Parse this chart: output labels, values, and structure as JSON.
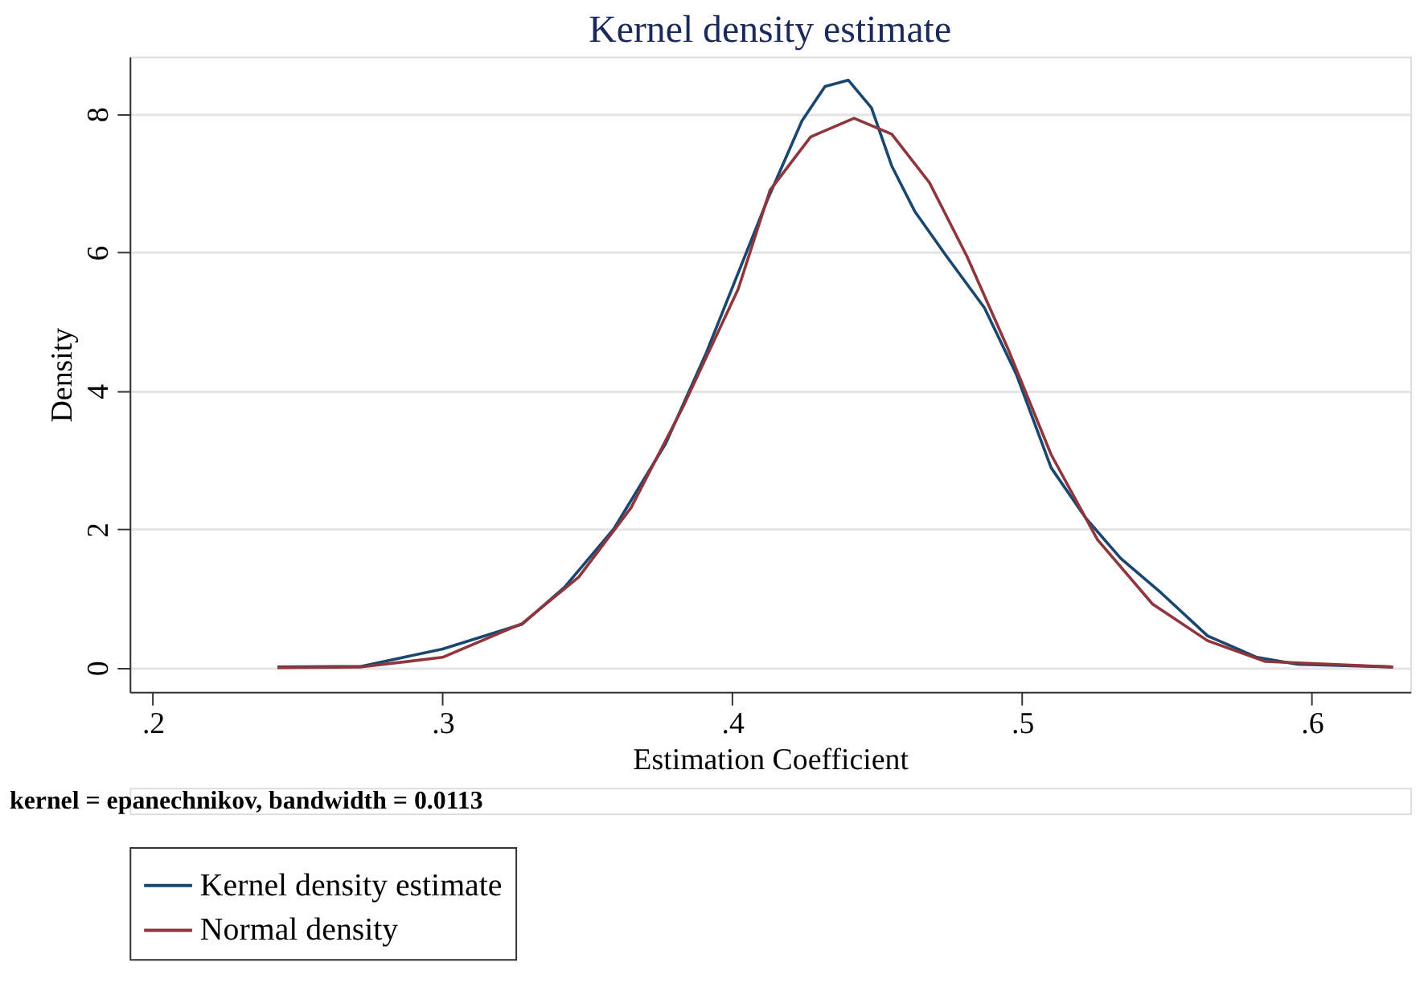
{
  "chart_data": {
    "type": "line",
    "title": "Kernel density estimate",
    "xlabel": "Estimation Coefficient",
    "ylabel": "Density",
    "xlim": [
      0.192,
      0.634
    ],
    "xticks": [
      {
        "value": 0.2,
        "label": ".2"
      },
      {
        "value": 0.3,
        "label": ".3"
      },
      {
        "value": 0.4,
        "label": ".4"
      },
      {
        "value": 0.5,
        "label": ".5"
      },
      {
        "value": 0.6,
        "label": ".6"
      }
    ],
    "ylim": [
      -0.35,
      8.83
    ],
    "yticks": [
      0,
      2,
      4,
      6,
      8
    ],
    "grid": "y",
    "legend": "bottom",
    "line_style": "solid",
    "marker": "none",
    "annotations": [
      "kernel = epanechnikov, bandwidth = 0.0113"
    ],
    "series": [
      {
        "name": "Kernel density estimate",
        "color": "#1a476f",
        "x": [
          0.243,
          0.272,
          0.3,
          0.3275,
          0.342,
          0.359,
          0.377,
          0.391,
          0.412,
          0.424,
          0.432,
          0.44,
          0.448,
          0.455,
          0.463,
          0.474,
          0.487,
          0.498,
          0.51,
          0.522,
          0.534,
          0.548,
          0.564,
          0.581,
          0.595,
          0.628
        ],
        "values": [
          0.01,
          0.02,
          0.27,
          0.63,
          1.16,
          2.0,
          3.24,
          4.55,
          6.75,
          7.9,
          8.4,
          8.49,
          8.09,
          7.25,
          6.59,
          5.94,
          5.2,
          4.24,
          2.89,
          2.16,
          1.58,
          1.08,
          0.46,
          0.15,
          0.05,
          0.01
        ]
      },
      {
        "name": "Normal density",
        "color": "#90353b",
        "x": [
          0.243,
          0.272,
          0.3,
          0.3275,
          0.347,
          0.365,
          0.383,
          0.402,
          0.413,
          0.427,
          0.442,
          0.455,
          0.468,
          0.481,
          0.495,
          0.51,
          0.526,
          0.545,
          0.564,
          0.584,
          0.628
        ],
        "values": [
          0.0,
          0.01,
          0.15,
          0.64,
          1.31,
          2.31,
          3.77,
          5.47,
          6.9,
          7.67,
          7.94,
          7.71,
          7.01,
          5.94,
          4.62,
          3.08,
          1.85,
          0.92,
          0.39,
          0.09,
          0.01
        ]
      }
    ]
  }
}
